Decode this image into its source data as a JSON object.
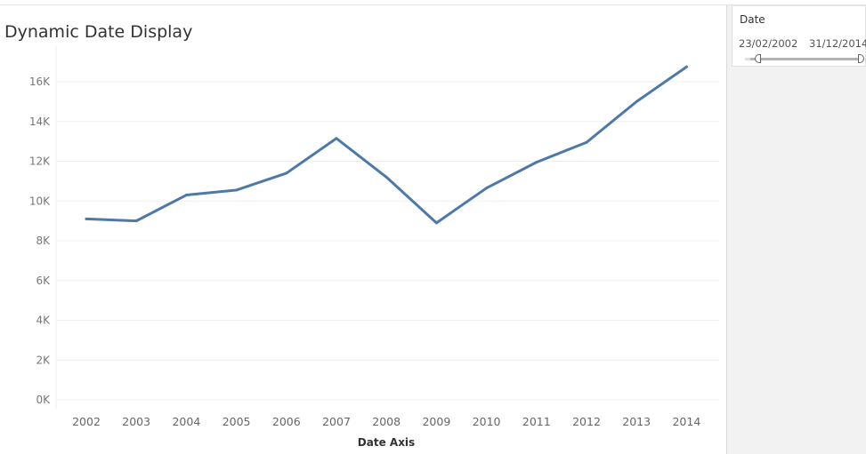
{
  "chart_data": {
    "type": "line",
    "title": "Dynamic Date Display",
    "xlabel": "Date Axis",
    "ylabel": "",
    "x": [
      "2002",
      "2003",
      "2004",
      "2005",
      "2006",
      "2007",
      "2008",
      "2009",
      "2010",
      "2011",
      "2012",
      "2013",
      "2014"
    ],
    "series": [
      {
        "values": [
          9100,
          9000,
          10300,
          10550,
          11400,
          13150,
          11200,
          8900,
          10650,
          11950,
          12950,
          15000,
          16750
        ]
      }
    ],
    "ylim": [
      0,
      17000
    ],
    "yticks": [
      0,
      2000,
      4000,
      6000,
      8000,
      10000,
      12000,
      14000,
      16000
    ],
    "ytick_labels": [
      "0K",
      "2K",
      "4K",
      "6K",
      "8K",
      "10K",
      "12K",
      "14K",
      "16K"
    ],
    "grid": true,
    "line_color": "#4e79a7"
  },
  "filter": {
    "title": "Date",
    "start": "23/02/2002",
    "end": "31/12/2014"
  }
}
